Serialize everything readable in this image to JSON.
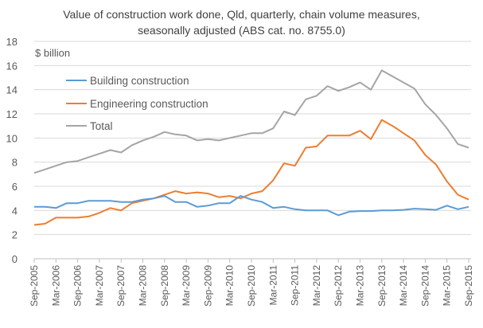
{
  "chart_data": {
    "type": "line",
    "title_line1": "Value of construction  work done, Qld, quarterly, chain volume measures,",
    "title_line2": "seasonally adjusted (ABS cat. no. 8755.0)",
    "ylabel": "$ billion",
    "xlabel": "",
    "ylim": [
      0,
      18
    ],
    "yticks": [
      0,
      2,
      4,
      6,
      8,
      10,
      12,
      14,
      16,
      18
    ],
    "grid": true,
    "legend_position": "top-left",
    "x_tick_labels": [
      "Sep-2005",
      "Mar-2006",
      "Sep-2006",
      "Mar-2007",
      "Sep-2007",
      "Mar-2008",
      "Sep-2008",
      "Mar-2009",
      "Sep-2009",
      "Mar-2010",
      "Sep-2010",
      "Mar-2011",
      "Sep-2011",
      "Mar-2012",
      "Sep-2012",
      "Mar-2013",
      "Sep-2013",
      "Mar-2014",
      "Sep-2014",
      "Mar-2015",
      "Sep-2015"
    ],
    "x_range": [
      "Sep-2005",
      "Sep-2015"
    ],
    "x_frequency": "quarterly",
    "series": [
      {
        "name": "Building construction",
        "color": "#5b9bd5",
        "values": [
          4.3,
          4.3,
          4.2,
          4.6,
          4.6,
          4.8,
          4.8,
          4.8,
          4.7,
          4.7,
          4.9,
          5.0,
          5.2,
          4.7,
          4.7,
          4.3,
          4.4,
          4.6,
          4.6,
          5.2,
          4.9,
          4.7,
          4.2,
          4.3,
          4.1,
          4.0,
          4.0,
          4.0,
          3.6,
          3.9,
          3.95,
          3.95,
          4.0,
          4.0,
          4.05,
          4.15,
          4.1,
          4.05,
          4.4,
          4.1,
          4.3
        ]
      },
      {
        "name": "Engineering construction",
        "color": "#ed7d31",
        "values": [
          2.8,
          2.9,
          3.4,
          3.4,
          3.4,
          3.5,
          3.8,
          4.2,
          4.0,
          4.6,
          4.8,
          5.0,
          5.3,
          5.6,
          5.4,
          5.5,
          5.4,
          5.1,
          5.2,
          5.0,
          5.4,
          5.6,
          6.5,
          7.9,
          7.7,
          9.2,
          9.3,
          10.2,
          10.2,
          10.2,
          10.6,
          9.9,
          11.5,
          11.0,
          10.4,
          9.8,
          8.6,
          7.8,
          6.4,
          5.3,
          4.9
        ]
      },
      {
        "name": "Total",
        "color": "#a5a5a5",
        "values": [
          7.1,
          7.4,
          7.7,
          8.0,
          8.1,
          8.4,
          8.7,
          9.0,
          8.8,
          9.4,
          9.8,
          10.1,
          10.5,
          10.3,
          10.2,
          9.8,
          9.9,
          9.8,
          10.0,
          10.2,
          10.4,
          10.4,
          10.8,
          12.2,
          11.9,
          13.2,
          13.5,
          14.3,
          13.9,
          14.2,
          14.6,
          14.0,
          15.6,
          15.1,
          14.6,
          14.1,
          12.8,
          11.9,
          10.8,
          9.5,
          9.2
        ]
      }
    ]
  }
}
